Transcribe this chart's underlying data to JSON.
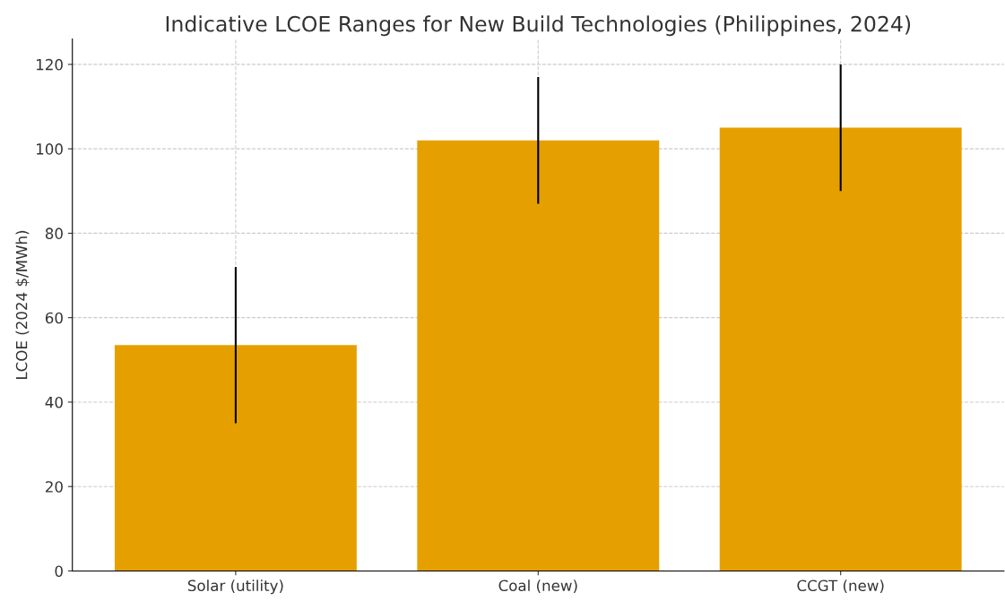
{
  "chart_data": {
    "type": "bar",
    "title": "Indicative LCOE Ranges for New Build Technologies (Philippines, 2024)",
    "ylabel": "LCOE (2024 $/MWh)",
    "categories": [
      "Solar (utility)",
      "Coal (new)",
      "CCGT (new)"
    ],
    "values": [
      53.5,
      102,
      105
    ],
    "errors": [
      [
        35,
        72
      ],
      [
        87,
        117
      ],
      [
        90,
        120
      ]
    ],
    "color": "#e5a000",
    "ylim": [
      0,
      126
    ],
    "yticks": [
      0,
      20,
      40,
      60,
      80,
      100,
      120
    ],
    "grid": true
  }
}
